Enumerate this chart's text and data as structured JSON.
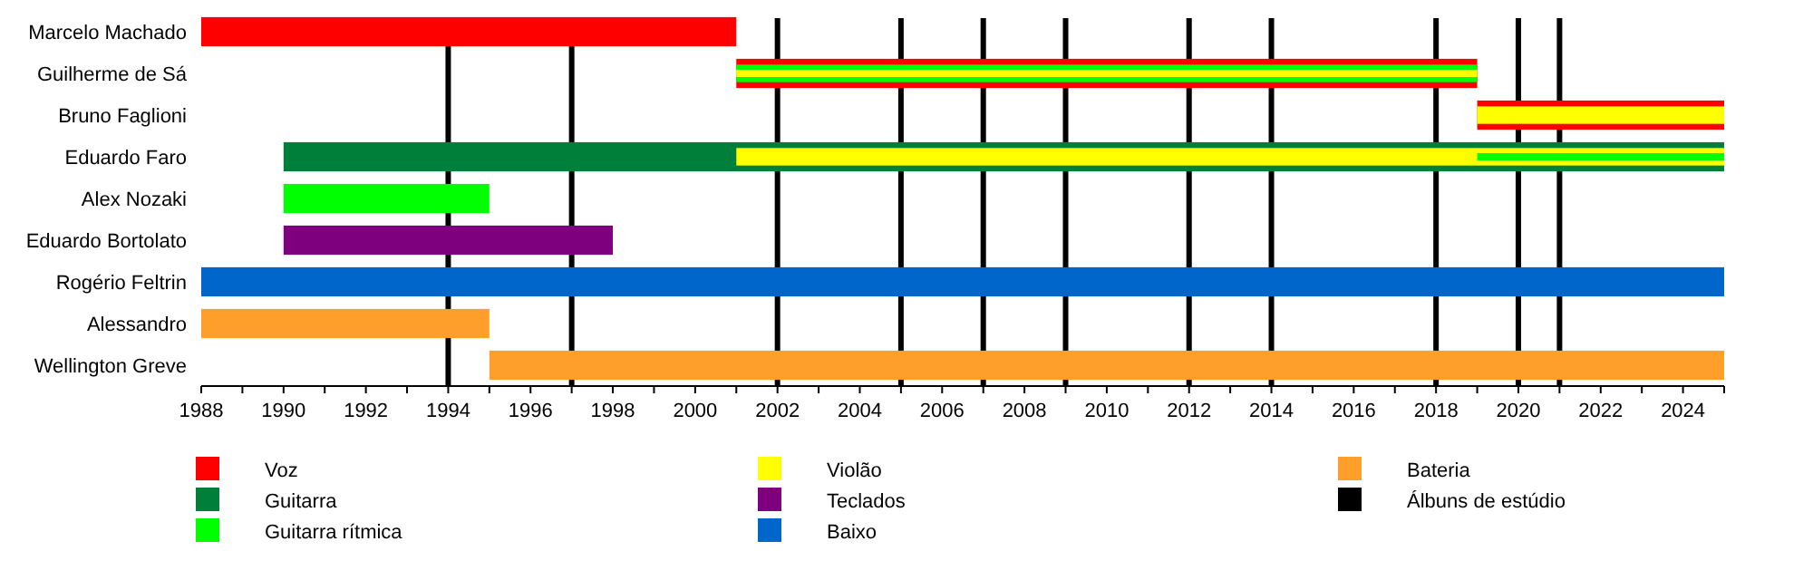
{
  "chart_data": {
    "type": "bar",
    "orientation": "horizontal",
    "legend": "bottom",
    "categories": [
      "Marcelo Machado",
      "Guilherme de Sá",
      "Bruno Faglioni",
      "Eduardo Faro",
      "Alex Nozaki",
      "Eduardo Bortolato",
      "Rogério Feltrin",
      "Alessandro",
      "Wellington Greve"
    ],
    "xlim": [
      1988,
      2025
    ],
    "xticks": [
      1988,
      {
        "value": 1989,
        "label": null
      },
      1990,
      {
        "value": 1991,
        "label": null
      },
      1992,
      {
        "value": 1993,
        "label": null
      },
      1994,
      {
        "value": 1995,
        "label": null
      },
      1996,
      {
        "value": 1997,
        "label": null
      },
      1998,
      {
        "value": 1999,
        "label": null
      },
      2000,
      {
        "value": 2001,
        "label": null
      },
      2002,
      {
        "value": 2003,
        "label": null
      },
      2004,
      {
        "value": 2005,
        "label": null
      },
      2006,
      {
        "value": 2007,
        "label": null
      },
      2008,
      {
        "value": 2009,
        "label": null
      },
      2010,
      {
        "value": 2011,
        "label": null
      },
      2012,
      {
        "value": 2013,
        "label": null
      },
      2014,
      {
        "value": 2015,
        "label": null
      },
      2016,
      {
        "value": 2017,
        "label": null
      },
      2018,
      {
        "value": 2019,
        "label": null
      },
      2020,
      {
        "value": 2021,
        "label": null
      },
      2022,
      {
        "value": 2023,
        "label": null
      },
      2024,
      {
        "value": 2025,
        "label": null
      }
    ],
    "series": [
      {
        "name": "Voz",
        "color": "#ff0000",
        "base": [
          1988,
          2001,
          2019,
          null,
          null,
          null,
          null,
          null,
          null
        ],
        "values": [
          13,
          18,
          6,
          null,
          null,
          null,
          null,
          null,
          null
        ]
      },
      {
        "name": "Guitarra",
        "color": "#007f3a",
        "base": [
          null,
          null,
          null,
          1990,
          null,
          null,
          null,
          null,
          null
        ],
        "values": [
          null,
          null,
          null,
          35,
          null,
          null,
          null,
          null,
          null
        ]
      },
      {
        "name": "Guitarra rítmica",
        "color": "#00ff00",
        "base": [
          null,
          2001,
          null,
          2019,
          1990,
          null,
          null,
          null,
          null
        ],
        "values": [
          null,
          18,
          null,
          6,
          5,
          null,
          null,
          null,
          null
        ]
      },
      {
        "name": "Violão",
        "color": "#ffff00",
        "base": [
          null,
          2001,
          2019,
          2001,
          null,
          null,
          null,
          null,
          null
        ],
        "values": [
          null,
          18,
          6,
          24,
          null,
          null,
          null,
          null,
          null
        ]
      },
      {
        "name": "Teclados",
        "color": "#7f007f",
        "base": [
          null,
          null,
          null,
          null,
          null,
          1990,
          null,
          null,
          null
        ],
        "values": [
          null,
          null,
          null,
          null,
          null,
          8,
          null,
          null,
          null
        ]
      },
      {
        "name": "Baixo",
        "color": "#0066cc",
        "base": [
          null,
          null,
          null,
          null,
          null,
          null,
          1988,
          null,
          null
        ],
        "values": [
          null,
          null,
          null,
          null,
          null,
          null,
          37,
          null,
          null
        ]
      },
      {
        "name": "Bateria",
        "color": "#ff9f2b",
        "base": [
          null,
          null,
          null,
          null,
          null,
          null,
          null,
          1988,
          1995
        ],
        "values": [
          null,
          null,
          null,
          null,
          null,
          null,
          null,
          7,
          30
        ]
      }
    ],
    "ref_lines": [
      {
        "axis": "x",
        "value": 1994,
        "color": "#000000"
      },
      {
        "axis": "x",
        "value": 1997,
        "color": "#000000"
      },
      {
        "axis": "x",
        "value": 2002,
        "color": "#000000"
      },
      {
        "axis": "x",
        "value": 2005,
        "color": "#000000"
      },
      {
        "axis": "x",
        "value": 2007,
        "color": "#000000"
      },
      {
        "axis": "x",
        "value": 2009,
        "color": "#000000"
      },
      {
        "axis": "x",
        "value": 2012,
        "color": "#000000"
      },
      {
        "axis": "x",
        "value": 2014,
        "color": "#000000"
      },
      {
        "axis": "x",
        "value": 2018,
        "color": "#000000"
      },
      {
        "axis": "x",
        "value": 2020,
        "color": "#000000"
      },
      {
        "axis": "x",
        "value": 2021,
        "color": "#000000"
      }
    ],
    "annotations": [
      "Álbuns de estúdio"
    ]
  }
}
